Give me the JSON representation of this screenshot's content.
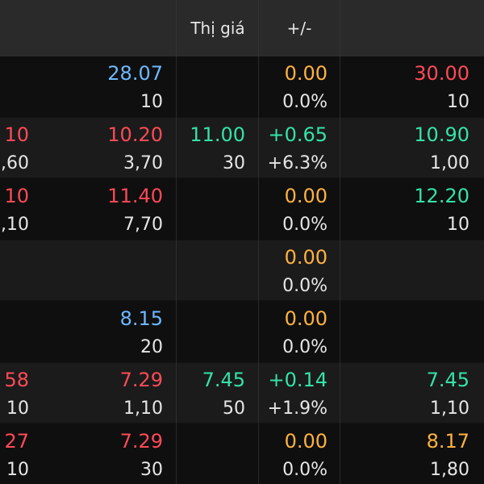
{
  "header": {
    "price_label": "Thị giá",
    "change_label": "+/-"
  },
  "colors": {
    "background": "#111111",
    "header": "#2a2a2a",
    "up": "#35e2a8",
    "down": "#ff4a57",
    "reference": "#ffb23f",
    "blue": "#6db8ff"
  },
  "rows": [
    {
      "left_top": "",
      "left_bot": "",
      "bid_top": "28.07",
      "bid_bot": "10",
      "price_top": "",
      "price_bot": "",
      "change_top": "0.00",
      "change_bot": "0.0%",
      "ask_top": "30.00",
      "ask_bot": "10"
    },
    {
      "left_top": "10",
      "left_bot": ",60",
      "bid_top": "10.20",
      "bid_bot": "3,70",
      "price_top": "11.00",
      "price_bot": "30",
      "change_top": "+0.65",
      "change_bot": "+6.3%",
      "ask_top": "10.90",
      "ask_bot": "1,00"
    },
    {
      "left_top": "10",
      "left_bot": ",10",
      "bid_top": "11.40",
      "bid_bot": "7,70",
      "price_top": "",
      "price_bot": "",
      "change_top": "0.00",
      "change_bot": "0.0%",
      "ask_top": "12.20",
      "ask_bot": "10"
    },
    {
      "left_top": "",
      "left_bot": "",
      "bid_top": "",
      "bid_bot": "",
      "price_top": "",
      "price_bot": "",
      "change_top": "0.00",
      "change_bot": "0.0%",
      "ask_top": "",
      "ask_bot": ""
    },
    {
      "left_top": "",
      "left_bot": "",
      "bid_top": "8.15",
      "bid_bot": "20",
      "price_top": "",
      "price_bot": "",
      "change_top": "0.00",
      "change_bot": "0.0%",
      "ask_top": "",
      "ask_bot": ""
    },
    {
      "left_top": "58",
      "left_bot": "10",
      "bid_top": "7.29",
      "bid_bot": "1,10",
      "price_top": "7.45",
      "price_bot": "50",
      "change_top": "+0.14",
      "change_bot": "+1.9%",
      "ask_top": "7.45",
      "ask_bot": "1,10"
    },
    {
      "left_top": "27",
      "left_bot": "10",
      "bid_top": "7.29",
      "bid_bot": "30",
      "price_top": "",
      "price_bot": "",
      "change_top": "0.00",
      "change_bot": "0.0%",
      "ask_top": "8.17",
      "ask_bot": "1,80"
    }
  ]
}
